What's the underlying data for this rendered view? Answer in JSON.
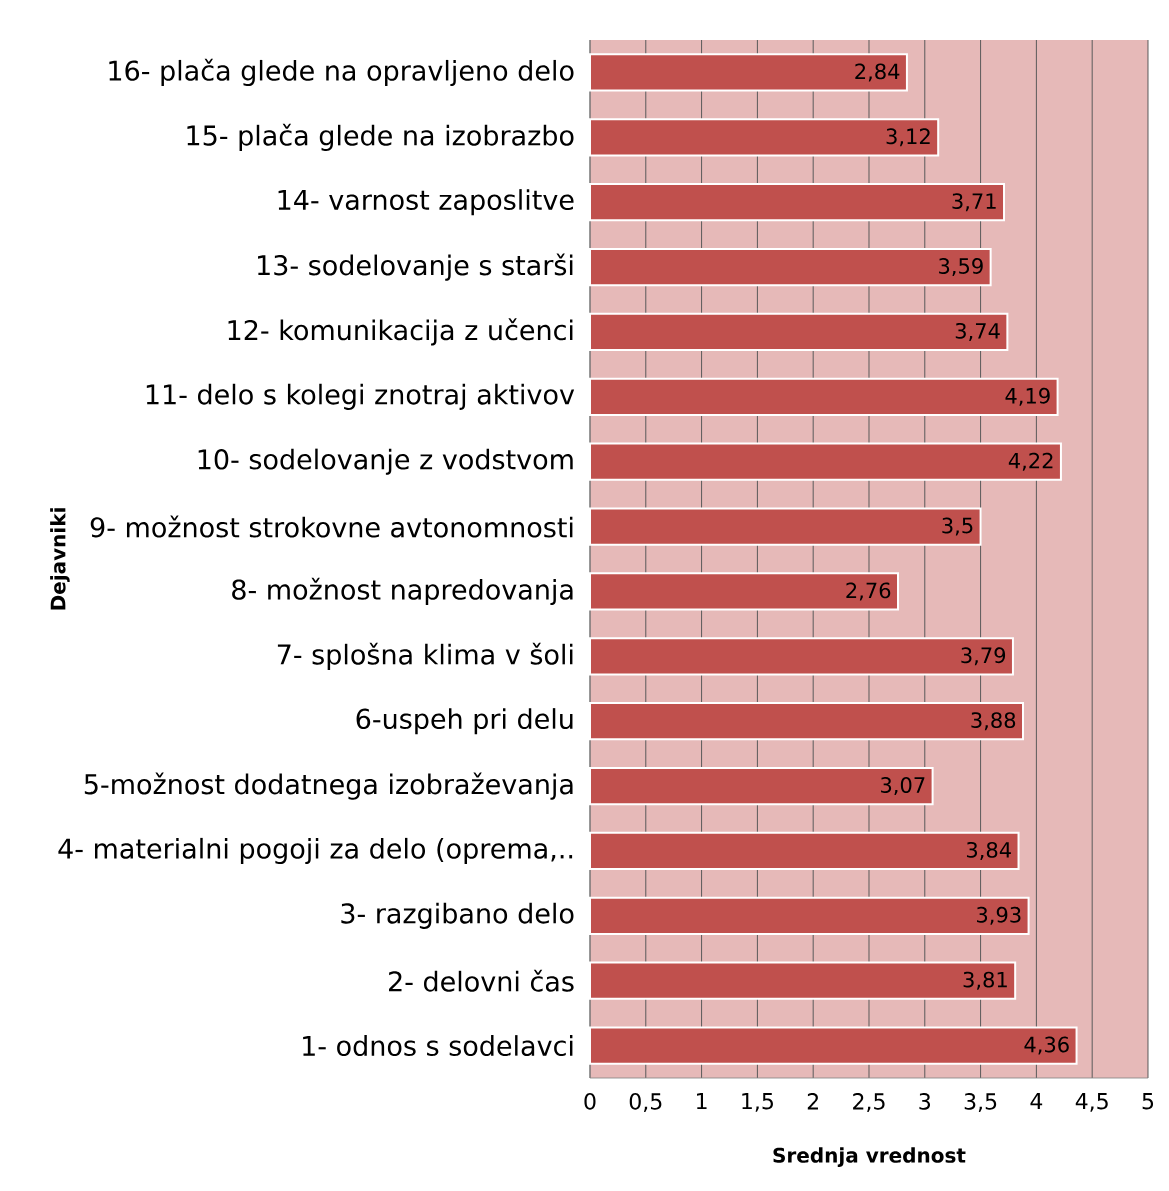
{
  "chart_data": {
    "type": "bar",
    "orientation": "horizontal",
    "xlabel": "Srednja vrednost",
    "ylabel": "Dejavniki",
    "categories": [
      "16- plača glede na opravljeno delo",
      "15- plača glede na izobrazbo",
      "14- varnost zaposlitve",
      "13- sodelovanje s starši",
      "12- komunikacija z učenci",
      "11- delo s kolegi znotraj aktivov",
      "10- sodelovanje z vodstvom",
      "9- možnost strokovne avtonomnosti",
      "8- možnost napredovanja",
      "7- splošna klima v šoli",
      "6-uspeh pri delu",
      "5-možnost dodatnega izobraževanja",
      "4- materialni pogoji za delo (oprema,..",
      "3- razgibano delo",
      "2- delovni čas",
      "1- odnos s sodelavci"
    ],
    "values": [
      2.84,
      3.12,
      3.71,
      3.59,
      3.74,
      4.19,
      4.22,
      3.5,
      2.76,
      3.79,
      3.88,
      3.07,
      3.84,
      3.93,
      3.81,
      4.36
    ],
    "value_labels": [
      "2,84",
      "3,12",
      "3,71",
      "3,59",
      "3,74",
      "4,19",
      "4,22",
      "3,5",
      "2,76",
      "3,79",
      "3,88",
      "3,07",
      "3,84",
      "3,93",
      "3,81",
      "4,36"
    ],
    "color": "#c0504d",
    "xlim": [
      0,
      5
    ],
    "xticks": [
      0,
      {
        "value": 0.5,
        "label": "0,5"
      },
      1,
      {
        "value": 1.5,
        "label": "1,5"
      },
      2,
      {
        "value": 2.5,
        "label": "2,5"
      },
      3,
      {
        "value": 3.5,
        "label": "3,5"
      },
      4,
      {
        "value": 4.5,
        "label": "4,5"
      },
      5
    ],
    "grid": "x"
  }
}
